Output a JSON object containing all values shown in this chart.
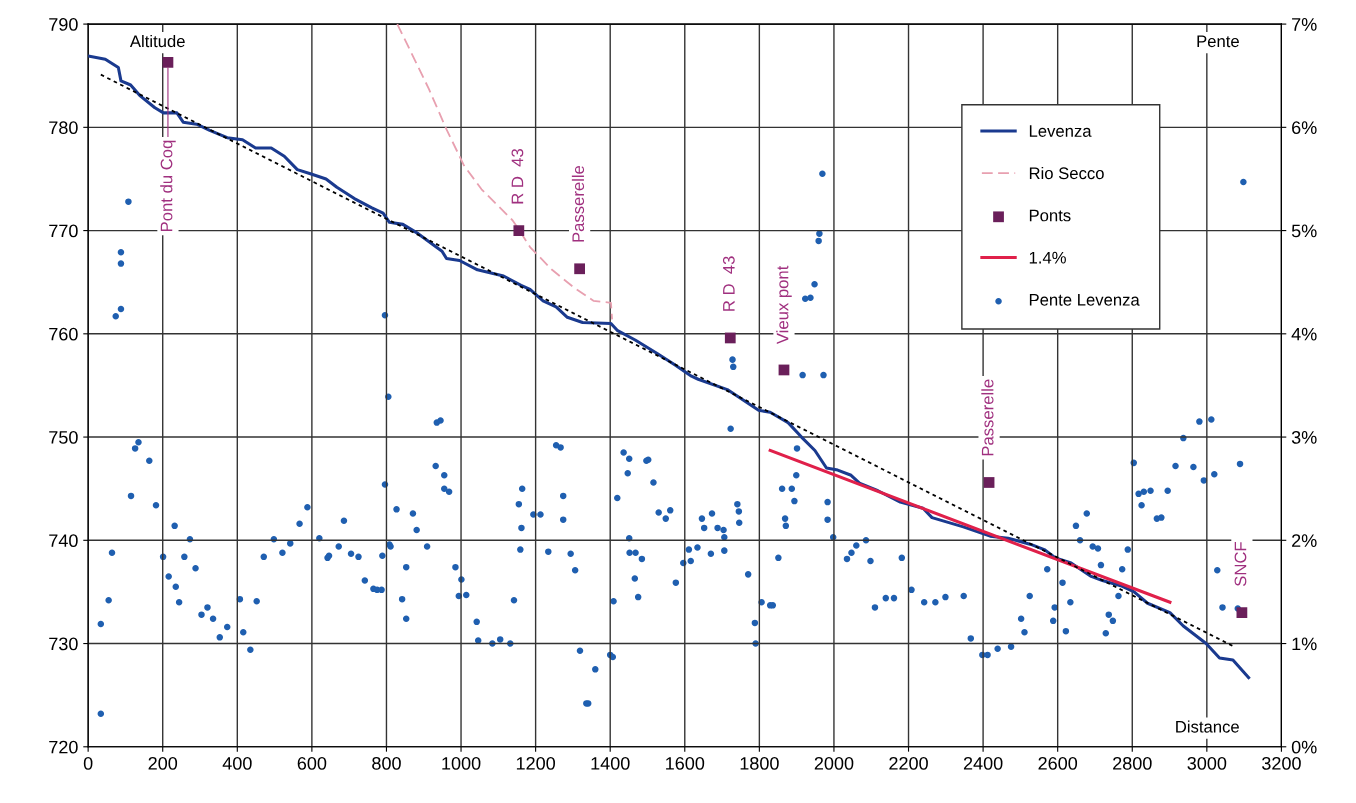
{
  "chart_data": {
    "type": "line",
    "xlabel": "Distance",
    "ylabel": "Altitude",
    "y2label": "Pente",
    "xlim": [
      0,
      3200
    ],
    "xticks": [
      0,
      200,
      400,
      600,
      800,
      1000,
      1200,
      1400,
      1600,
      1800,
      2000,
      2200,
      2400,
      2600,
      2800,
      3000,
      3200
    ],
    "ylim": [
      720,
      790
    ],
    "yticks": [
      720,
      730,
      740,
      750,
      760,
      770,
      780,
      790
    ],
    "y2lim": [
      0,
      7
    ],
    "y2ticks": [
      {
        "value": 0,
        "label": "0%"
      },
      {
        "value": 1,
        "label": "1%"
      },
      {
        "value": 2,
        "label": "2%"
      },
      {
        "value": 3,
        "label": "3%"
      },
      {
        "value": 4,
        "label": "4%"
      },
      {
        "value": 5,
        "label": "5%"
      },
      {
        "value": 6,
        "label": "6%"
      },
      {
        "value": 7,
        "label": "7%"
      }
    ],
    "grid": true,
    "legend": "top right",
    "series": [
      {
        "name": "Levenza",
        "color": "#1a3a8f",
        "line_style": "solid",
        "x": [
          0,
          46,
          81,
          88,
          114,
          138,
          179,
          202,
          238,
          255,
          291,
          326,
          373,
          414,
          449,
          491,
          526,
          561,
          596,
          638,
          667,
          714,
          761,
          791,
          808,
          844,
          885,
          949,
          961,
          996,
          1044,
          1114,
          1161,
          1185,
          1220,
          1255,
          1285,
          1326,
          1402,
          1420,
          1467,
          1526,
          1573,
          1618,
          1636,
          1714,
          1798,
          1829,
          1877,
          1913,
          1949,
          1980,
          2010,
          2046,
          2070,
          2118,
          2178,
          2239,
          2263,
          2347,
          2419,
          2467,
          2528,
          2564,
          2594,
          2636,
          2690,
          2720,
          2769,
          2805,
          2841,
          2901,
          2937,
          2998,
          3034,
          3070,
          3112
        ],
        "values": [
          786.9,
          786.6,
          785.8,
          784.5,
          784.1,
          783.1,
          781.9,
          781.4,
          781.4,
          780.5,
          780.3,
          779.7,
          779.0,
          778.8,
          778.0,
          778.0,
          777.2,
          775.9,
          775.5,
          775.0,
          774.2,
          773.1,
          772.2,
          771.7,
          770.8,
          770.6,
          769.7,
          768.0,
          767.3,
          767.1,
          766.2,
          765.6,
          764.7,
          764.3,
          763.2,
          762.6,
          761.6,
          761.1,
          761.0,
          760.3,
          759.4,
          758.1,
          757.0,
          755.9,
          755.6,
          754.6,
          752.6,
          752.4,
          751.4,
          750.0,
          748.7,
          747.0,
          746.8,
          746.3,
          745.5,
          744.8,
          743.7,
          743.1,
          742.2,
          741.3,
          740.4,
          740.2,
          739.6,
          739.1,
          738.3,
          737.8,
          736.5,
          736.1,
          735.6,
          735.0,
          733.9,
          733.0,
          731.7,
          730.0,
          728.6,
          728.4,
          726.7
        ]
      },
      {
        "name": "Rio Secco",
        "type": "line",
        "color": "#e8a0b0",
        "line_style": "dashed",
        "x": [
          829,
          867,
          914,
          961,
          1008,
          1055,
          1102,
          1138,
          1155,
          1185,
          1244,
          1302,
          1355,
          1402,
          1405
        ],
        "values": [
          790,
          787.2,
          783.7,
          779.8,
          776.3,
          774.0,
          772.3,
          771.0,
          770.1,
          768.4,
          766.2,
          764.5,
          763.2,
          763.0,
          761.4
        ]
      },
      {
        "name": "Ponts",
        "type": "scatter",
        "marker": "square",
        "color": "#6a1f5a",
        "x": [
          214,
          1155,
          1318,
          1722,
          1866,
          2416,
          3094
        ],
        "values": [
          786.3,
          770.0,
          766.3,
          759.6,
          756.5,
          745.6,
          733.0
        ]
      },
      {
        "name": "1.4%",
        "type": "line",
        "color": "#e0204a",
        "line_style": "solid",
        "x": [
          1829,
          2901
        ],
        "values": [
          748.7,
          734.0
        ]
      },
      {
        "name": "Pente Levenza",
        "type": "scatter",
        "axis": "y2",
        "marker": "circle",
        "color": "#1f5fb0",
        "x": [
          34,
          34,
          55,
          64,
          74,
          88,
          88,
          88,
          108,
          115,
          126,
          135,
          164,
          182,
          201,
          216,
          232,
          235,
          244,
          258,
          273,
          288,
          304,
          320,
          335,
          353,
          373,
          407,
          416,
          435,
          452,
          471,
          498,
          521,
          542,
          567,
          588,
          620,
          642,
          646,
          672,
          686,
          705,
          725,
          742,
          765,
          775,
          787,
          789,
          796,
          796,
          805,
          808,
          811,
          827,
          842,
          853,
          853,
          871,
          881,
          909,
          932,
          935,
          945,
          955,
          955,
          968,
          985,
          994,
          1001,
          1014,
          1042,
          1046,
          1084,
          1105,
          1132,
          1142,
          1155,
          1159,
          1162,
          1164,
          1194,
          1213,
          1234,
          1255,
          1267,
          1274,
          1274,
          1294,
          1306,
          1319,
          1336,
          1341,
          1360,
          1400,
          1407,
          1409,
          1419,
          1436,
          1447,
          1451,
          1451,
          1452,
          1466,
          1468,
          1475,
          1485,
          1497,
          1502,
          1516,
          1530,
          1549,
          1561,
          1576,
          1596,
          1611,
          1616,
          1634,
          1646,
          1652,
          1670,
          1673,
          1688,
          1704,
          1706,
          1706,
          1723,
          1728,
          1730,
          1741,
          1745,
          1746,
          1770,
          1788,
          1790,
          1806,
          1829,
          1836,
          1851,
          1861,
          1869,
          1871,
          1887,
          1894,
          1899,
          1901,
          1916,
          1923,
          1937,
          1948,
          1959,
          1961,
          1969,
          1972,
          1983,
          1983,
          1998,
          2035,
          2047,
          2060,
          2086,
          2098,
          2110,
          2139,
          2161,
          2182,
          2208,
          2242,
          2272,
          2299,
          2348,
          2367,
          2398,
          2412,
          2439,
          2475,
          2502,
          2511,
          2525,
          2572,
          2588,
          2592,
          2613,
          2622,
          2634,
          2649,
          2660,
          2678,
          2694,
          2708,
          2716,
          2729,
          2737,
          2748,
          2763,
          2773,
          2788,
          2804,
          2817,
          2825,
          2831,
          2849,
          2866,
          2878,
          2895,
          2916,
          2937,
          2964,
          2980,
          2992,
          3012,
          3020,
          3028,
          3042,
          3083,
          3089,
          3098
        ],
        "values": [
          0.32,
          1.19,
          1.42,
          1.88,
          4.17,
          4.24,
          4.68,
          4.79,
          5.28,
          2.43,
          2.89,
          2.95,
          2.77,
          2.34,
          1.84,
          1.65,
          2.14,
          1.55,
          1.4,
          1.84,
          2.01,
          1.73,
          1.28,
          1.35,
          1.24,
          1.06,
          1.16,
          1.43,
          1.11,
          0.94,
          1.41,
          1.84,
          2.01,
          1.88,
          1.97,
          2.16,
          2.32,
          2.02,
          1.83,
          1.85,
          1.94,
          2.19,
          1.87,
          1.84,
          1.61,
          1.53,
          1.52,
          1.52,
          1.85,
          2.54,
          4.18,
          3.39,
          1.96,
          1.94,
          2.3,
          1.43,
          1.74,
          1.24,
          2.26,
          2.1,
          1.94,
          2.72,
          3.14,
          3.16,
          2.63,
          2.5,
          2.47,
          1.74,
          1.46,
          1.62,
          1.47,
          1.21,
          1.03,
          1.0,
          1.04,
          1.0,
          1.42,
          2.35,
          1.91,
          2.12,
          2.5,
          2.25,
          2.25,
          1.89,
          2.92,
          2.9,
          2.43,
          2.2,
          1.87,
          1.71,
          0.93,
          0.42,
          0.42,
          0.75,
          0.89,
          0.87,
          1.41,
          2.41,
          2.85,
          2.65,
          2.79,
          2.02,
          1.88,
          1.63,
          1.88,
          1.45,
          1.82,
          2.77,
          2.78,
          2.56,
          2.27,
          2.21,
          2.29,
          1.59,
          1.78,
          1.91,
          1.8,
          1.93,
          2.21,
          2.12,
          1.87,
          2.26,
          2.12,
          2.1,
          2.03,
          1.9,
          3.08,
          3.75,
          3.68,
          2.35,
          2.28,
          2.17,
          1.67,
          1.2,
          1.0,
          1.4,
          1.37,
          1.37,
          1.83,
          2.5,
          2.21,
          2.14,
          2.5,
          2.38,
          2.63,
          2.89,
          3.6,
          4.34,
          4.35,
          4.48,
          4.9,
          4.97,
          5.55,
          3.6,
          2.37,
          2.2,
          2.03,
          1.82,
          1.88,
          1.95,
          2.0,
          1.8,
          1.35,
          1.44,
          1.44,
          1.83,
          1.52,
          1.4,
          1.4,
          1.45,
          1.46,
          1.05,
          0.89,
          0.89,
          0.95,
          0.97,
          1.24,
          1.11,
          1.46,
          1.72,
          1.22,
          1.35,
          1.59,
          1.12,
          1.4,
          2.14,
          2.0,
          2.26,
          1.94,
          1.92,
          1.76,
          1.1,
          1.28,
          1.22,
          1.46,
          1.72,
          1.91,
          2.75,
          2.45,
          2.34,
          2.47,
          2.48,
          2.21,
          2.22,
          2.48,
          2.72,
          2.99,
          2.71,
          3.15,
          2.58,
          3.17,
          2.64,
          1.71,
          1.35,
          1.34,
          2.74,
          5.47
        ]
      },
      {
        "type": "line",
        "color": "#000000",
        "line_style": "dotted",
        "x": [
          34,
          3073
        ],
        "values": [
          785.1,
          729.7
        ]
      }
    ],
    "annotations": [
      {
        "text": "Pont du Coq",
        "x": 214,
        "y": 786.3
      },
      {
        "text": "R D  43",
        "x": 1155,
        "y": 770.0
      },
      {
        "text": "Passerelle",
        "x": 1318,
        "y": 766.3
      },
      {
        "text": "R D  43",
        "x": 1722,
        "y": 759.6
      },
      {
        "text": "Vieux pont",
        "x": 1866,
        "y": 756.5
      },
      {
        "text": "Passerelle",
        "x": 2416,
        "y": 745.6
      },
      {
        "text": "SNCF",
        "x": 3094,
        "y": 733.0
      }
    ]
  }
}
